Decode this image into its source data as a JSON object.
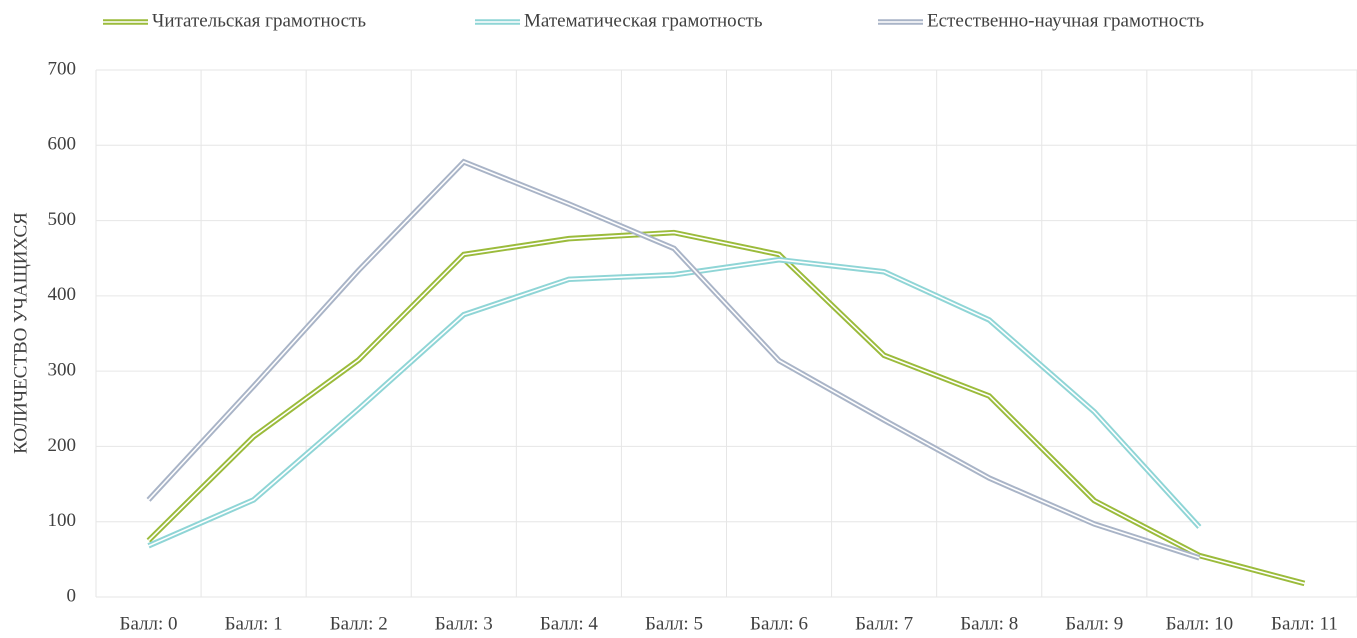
{
  "chart_data": {
    "type": "line",
    "y_label": "КОЛИЧЕСТВО УЧАЩИХСЯ",
    "categories": [
      "Балл: 0",
      "Балл: 1",
      "Балл: 2",
      "Балл: 3",
      "Балл: 4",
      "Балл: 5",
      "Балл: 6",
      "Балл: 7",
      "Балл: 8",
      "Балл: 9",
      "Балл: 10",
      "Балл: 11"
    ],
    "series": [
      {
        "name": "Читательская грамотность",
        "color": "#9bbb3b",
        "values": [
          75,
          213,
          315,
          455,
          476,
          484,
          455,
          321,
          267,
          128,
          55,
          18
        ]
      },
      {
        "name": "Математическая грамотность",
        "color": "#8fd5d6",
        "values": [
          68,
          129,
          250,
          375,
          422,
          428,
          448,
          432,
          368,
          246,
          93,
          null
        ]
      },
      {
        "name": "Естественно-научная грамотность",
        "color": "#a9b4c7",
        "values": [
          129,
          280,
          434,
          578,
          522,
          463,
          314,
          235,
          158,
          97,
          52,
          null
        ]
      }
    ],
    "ylim": [
      0,
      700
    ],
    "yticks": [
      0,
      100,
      200,
      300,
      400,
      500,
      600,
      700
    ],
    "grid": true,
    "legend": "top"
  }
}
